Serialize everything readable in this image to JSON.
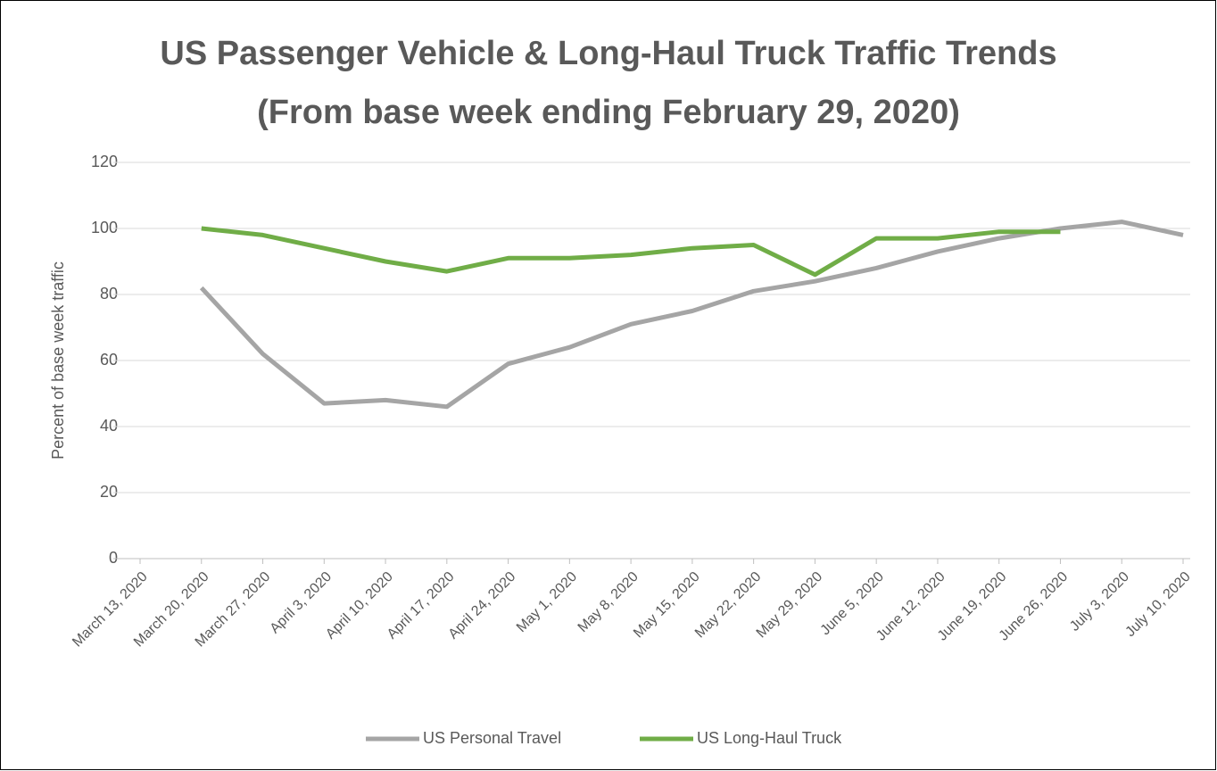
{
  "chart_data": {
    "type": "line",
    "title": "US Passenger Vehicle & Long-Haul Truck Traffic Trends",
    "subtitle": "(From base week ending February 29, 2020)",
    "ylabel": "Percent of base week traffic",
    "categories": [
      "March 13, 2020",
      "March 20, 2020",
      "March 27, 2020",
      "April 3, 2020",
      "April 10, 2020",
      "April 17, 2020",
      "April 24, 2020",
      "May 1, 2020",
      "May 8, 2020",
      "May 15, 2020",
      "May 22, 2020",
      "May 29, 2020",
      "June 5, 2020",
      "June 12, 2020",
      "June 19, 2020",
      "June 26, 2020",
      "July 3, 2020",
      "July 10, 2020"
    ],
    "series": [
      {
        "name": "US Personal Travel",
        "color": "#a5a5a5",
        "values": [
          null,
          82,
          62,
          47,
          48,
          46,
          59,
          64,
          71,
          75,
          81,
          84,
          88,
          93,
          97,
          100,
          102,
          98
        ]
      },
      {
        "name": "US Long-Haul Truck",
        "color": "#70ad47",
        "values": [
          null,
          100,
          98,
          94,
          90,
          87,
          91,
          91,
          92,
          94,
          95,
          86,
          97,
          97,
          99,
          99,
          null,
          null
        ]
      }
    ],
    "ylim": [
      0,
      120
    ],
    "yticks": [
      0,
      20,
      40,
      60,
      80,
      100,
      120
    ],
    "grid": true,
    "legend": "bottom"
  }
}
